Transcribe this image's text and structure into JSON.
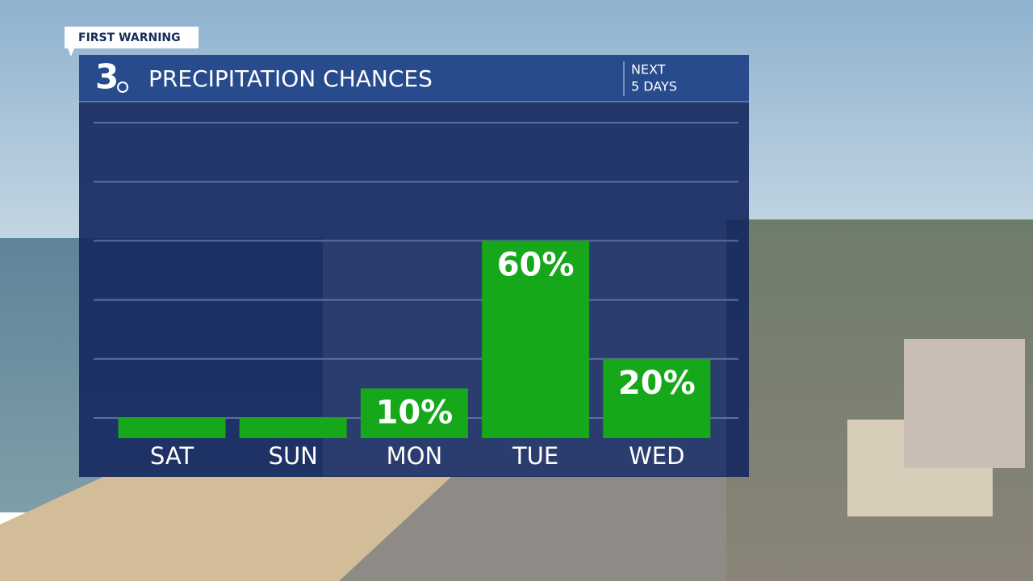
{
  "header": {
    "tag": "FIRST WARNING",
    "logo": "3",
    "period": [
      "NEXT",
      "5 DAYS"
    ]
  },
  "chart_data": {
    "type": "bar",
    "title": "PRECIPITATION CHANCES",
    "categories": [
      "SAT",
      "SUN",
      "MON",
      "TUE",
      "WED"
    ],
    "values": [
      0,
      0,
      10,
      60,
      20
    ],
    "value_labels": [
      null,
      null,
      "10%",
      "60%",
      "20%"
    ],
    "color": "#16a81a",
    "ylim": [
      0,
      100
    ],
    "yticks": [
      0,
      20,
      40,
      60,
      80,
      100
    ],
    "grid": true
  }
}
